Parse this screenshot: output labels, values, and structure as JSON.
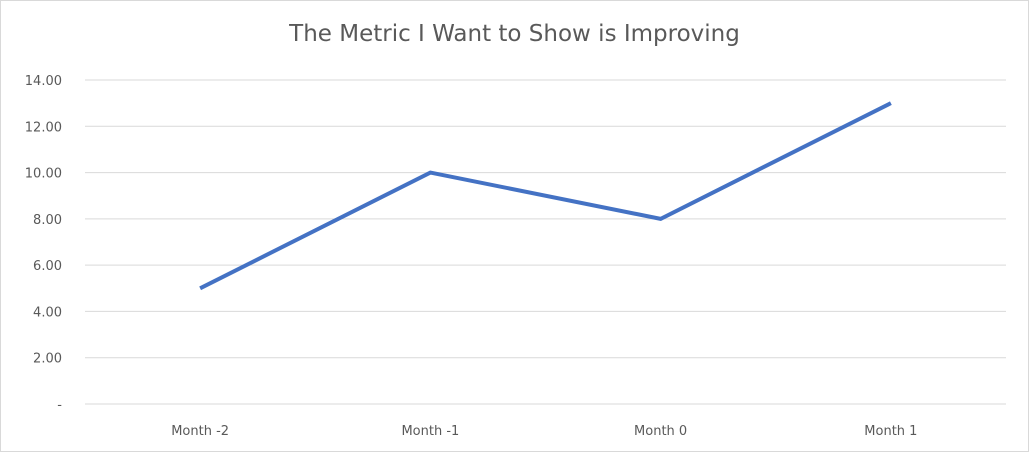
{
  "chart_data": {
    "type": "line",
    "title": "The Metric I Want to Show is Improving",
    "xlabel": "",
    "ylabel": "",
    "categories": [
      "Month -2",
      "Month -1",
      "Month 0",
      "Month 1"
    ],
    "series": [
      {
        "values": [
          5,
          10,
          8,
          13
        ]
      }
    ],
    "ylim": [
      0,
      14
    ],
    "y_ticks": [
      0,
      2,
      4,
      6,
      8,
      10,
      12,
      14
    ],
    "y_tick_labels": [
      "-",
      "2.00",
      "4.00",
      "6.00",
      "8.00",
      "10.00",
      "12.00",
      "14.00"
    ],
    "grid": true,
    "legend": "none",
    "colors": {
      "line": "#4472c4",
      "grid": "#d9d9d9",
      "text": "#595959"
    }
  }
}
